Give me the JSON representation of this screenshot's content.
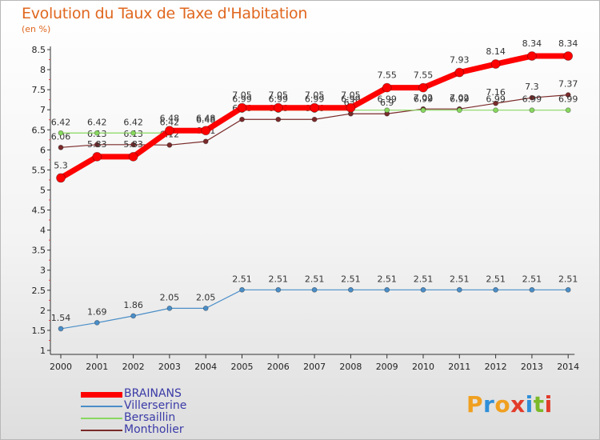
{
  "title": "Evolution du Taux de Taxe d'Habitation",
  "subtitle": "(en %)",
  "logo": {
    "text": "Proxiti",
    "icon": "proxiti-logo"
  },
  "chart_data": {
    "type": "line",
    "title": "Evolution du Taux de Taxe d'Habitation",
    "ylabel": "(en %)",
    "xlabel": "",
    "ylim": [
      1,
      8.5
    ],
    "yticks": [
      "1",
      "1.5",
      "2",
      "2.5",
      "3",
      "3.5",
      "4",
      "4.5",
      "5",
      "5.5",
      "6",
      "6.5",
      "7",
      "7.5",
      "8",
      "8.5"
    ],
    "x": [
      "2000",
      "2001",
      "2002",
      "2003",
      "2004",
      "2005",
      "2006",
      "2007",
      "2008",
      "2009",
      "2010",
      "2011",
      "2012",
      "2013",
      "2014"
    ],
    "grid": false,
    "legend_position": "bottom-left",
    "series": [
      {
        "name": "BRAINANS",
        "values": [
          5.3,
          5.83,
          5.83,
          6.48,
          6.48,
          7.05,
          7.05,
          7.05,
          7.05,
          7.55,
          7.55,
          7.93,
          8.14,
          8.34,
          8.34
        ],
        "labels": [
          "5.3",
          "5.83",
          "5.83",
          "6.48",
          "6.48",
          "7.05",
          "7.05",
          "7.05",
          "7.05",
          "7.55",
          "7.55",
          "7.93",
          "8.14",
          "8.34",
          "8.34"
        ],
        "color": "#ff0000"
      },
      {
        "name": "Villerserine",
        "values": [
          1.54,
          1.69,
          1.86,
          2.05,
          2.05,
          2.51,
          2.51,
          2.51,
          2.51,
          2.51,
          2.51,
          2.51,
          2.51,
          2.51,
          2.51
        ],
        "labels": [
          "1.54",
          "1.69",
          "1.86",
          "2.05",
          "2.05",
          "2.51",
          "2.51",
          "2.51",
          "2.51",
          "2.51",
          "2.51",
          "2.51",
          "2.51",
          "2.51",
          "2.51"
        ],
        "color": "#4a8ec8"
      },
      {
        "name": "Bersaillin",
        "values": [
          6.42,
          6.42,
          6.42,
          6.42,
          6.48,
          6.99,
          6.99,
          6.99,
          6.99,
          6.99,
          6.99,
          6.99,
          6.99,
          6.99,
          6.99
        ],
        "labels": [
          "6.42",
          "6.42",
          "6.42",
          "6.42",
          "6.48",
          "6.99",
          "6.99",
          "6.99",
          "6.99",
          "6.99",
          "6.99",
          "6.99",
          "6.99",
          "6.99",
          "6.99"
        ],
        "color": "#88d860"
      },
      {
        "name": "Montholier",
        "values": [
          6.06,
          6.13,
          6.13,
          6.12,
          6.21,
          6.76,
          6.76,
          6.76,
          6.9,
          6.9,
          7.02,
          7.02,
          7.16,
          7.3,
          7.37
        ],
        "labels": [
          "6.06",
          "6.13",
          "6.13",
          "6.12",
          "6.21",
          "6.76",
          "6.76",
          "6.76",
          "6.9",
          "6.9",
          "7.02",
          "7.02",
          "7.16",
          "7.3",
          "7.37"
        ],
        "color": "#7a2a2a"
      }
    ]
  }
}
